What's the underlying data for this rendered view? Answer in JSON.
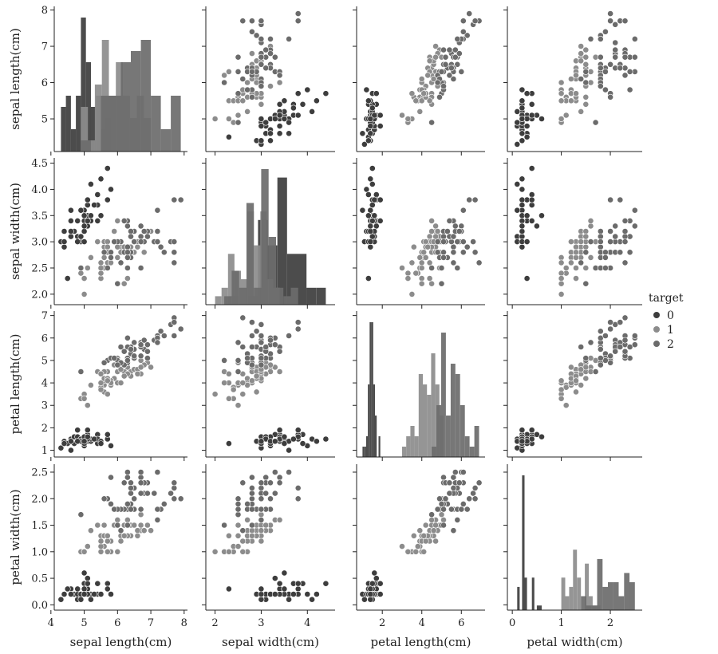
{
  "chart_data": {
    "type": "scatter",
    "title": "",
    "figure_kind": "pairplot",
    "grid": false,
    "legend": {
      "title": "target",
      "placement": "right",
      "entries": [
        {
          "label": "0",
          "color": "#3d3d3d"
        },
        {
          "label": "1",
          "color": "#8c8c8c"
        },
        {
          "label": "2",
          "color": "#6b6b6b"
        }
      ]
    },
    "variables": [
      {
        "key": "sepal_length",
        "label": "sepal length(cm)",
        "range": [
          4.1,
          8.1
        ],
        "ticks": [
          "4",
          "5",
          "6",
          "7",
          "8"
        ],
        "row_ticks": [
          "5",
          "6",
          "7",
          "8"
        ]
      },
      {
        "key": "sepal_width",
        "label": "sepal width(cm)",
        "range": [
          1.8,
          4.6
        ],
        "ticks": [
          "2",
          "3",
          "4"
        ],
        "row_ticks": [
          "2.0",
          "2.5",
          "3.0",
          "3.5",
          "4.0",
          "4.5"
        ]
      },
      {
        "key": "petal_length",
        "label": "petal length(cm)",
        "range": [
          0.7,
          7.2
        ],
        "ticks": [
          "2",
          "4",
          "6"
        ],
        "row_ticks": [
          "1",
          "2",
          "3",
          "4",
          "5",
          "6",
          "7"
        ]
      },
      {
        "key": "petal_width",
        "label": "petal width(cm)",
        "range": [
          -0.1,
          2.65
        ],
        "ticks": [
          "0",
          "1",
          "2"
        ],
        "row_ticks": [
          "0.0",
          "0.5",
          "1.0",
          "1.5",
          "2.0",
          "2.5"
        ]
      }
    ],
    "species": [
      {
        "target": "0",
        "color": "#3d3d3d",
        "sepal_length": [
          5.1,
          4.9,
          4.7,
          4.6,
          5.0,
          5.4,
          4.6,
          5.0,
          4.4,
          4.9,
          5.4,
          4.8,
          4.8,
          4.3,
          5.8,
          5.7,
          5.4,
          5.1,
          5.7,
          5.1,
          5.4,
          5.1,
          4.6,
          5.1,
          4.8,
          5.0,
          5.0,
          5.2,
          5.2,
          4.7,
          4.8,
          5.4,
          5.2,
          5.5,
          4.9,
          5.0,
          5.5,
          4.9,
          4.4,
          5.1,
          5.0,
          4.5,
          4.4,
          5.0,
          5.1,
          4.8,
          5.1,
          4.6,
          5.3,
          5.0
        ],
        "sepal_width": [
          3.5,
          3.0,
          3.2,
          3.1,
          3.6,
          3.9,
          3.4,
          3.4,
          2.9,
          3.1,
          3.7,
          3.4,
          3.0,
          3.0,
          4.0,
          4.4,
          3.9,
          3.5,
          3.8,
          3.8,
          3.4,
          3.7,
          3.6,
          3.3,
          3.4,
          3.0,
          3.4,
          3.5,
          3.4,
          3.2,
          3.1,
          3.4,
          4.1,
          4.2,
          3.1,
          3.2,
          3.5,
          3.6,
          3.0,
          3.4,
          3.5,
          2.3,
          3.2,
          3.5,
          3.8,
          3.0,
          3.8,
          3.2,
          3.7,
          3.3
        ],
        "petal_length": [
          1.4,
          1.4,
          1.3,
          1.5,
          1.4,
          1.7,
          1.4,
          1.5,
          1.4,
          1.5,
          1.5,
          1.6,
          1.4,
          1.1,
          1.2,
          1.5,
          1.3,
          1.4,
          1.7,
          1.5,
          1.7,
          1.5,
          1.0,
          1.7,
          1.9,
          1.6,
          1.6,
          1.5,
          1.4,
          1.6,
          1.6,
          1.5,
          1.5,
          1.4,
          1.5,
          1.2,
          1.3,
          1.4,
          1.3,
          1.5,
          1.3,
          1.3,
          1.3,
          1.6,
          1.9,
          1.4,
          1.6,
          1.4,
          1.5,
          1.4
        ],
        "petal_width": [
          0.2,
          0.2,
          0.2,
          0.2,
          0.2,
          0.4,
          0.3,
          0.2,
          0.2,
          0.1,
          0.2,
          0.2,
          0.1,
          0.1,
          0.2,
          0.4,
          0.4,
          0.3,
          0.3,
          0.3,
          0.2,
          0.4,
          0.2,
          0.5,
          0.2,
          0.2,
          0.4,
          0.2,
          0.2,
          0.2,
          0.2,
          0.4,
          0.1,
          0.2,
          0.2,
          0.2,
          0.2,
          0.1,
          0.2,
          0.2,
          0.3,
          0.3,
          0.2,
          0.6,
          0.4,
          0.3,
          0.2,
          0.2,
          0.2,
          0.2
        ]
      },
      {
        "target": "1",
        "color": "#8c8c8c",
        "sepal_length": [
          7.0,
          6.4,
          6.9,
          5.5,
          6.5,
          5.7,
          6.3,
          4.9,
          6.6,
          5.2,
          5.0,
          5.9,
          6.0,
          6.1,
          5.6,
          6.7,
          5.6,
          5.8,
          6.2,
          5.6,
          5.9,
          6.1,
          6.3,
          6.1,
          6.4,
          6.6,
          6.8,
          6.7,
          6.0,
          5.7,
          5.5,
          5.5,
          5.8,
          6.0,
          5.4,
          6.0,
          6.7,
          6.3,
          5.6,
          5.5,
          5.5,
          6.1,
          5.8,
          5.0,
          5.6,
          5.7,
          5.7,
          6.2,
          5.1,
          5.7
        ],
        "sepal_width": [
          3.2,
          3.2,
          3.1,
          2.3,
          2.8,
          2.8,
          3.3,
          2.4,
          2.9,
          2.7,
          2.0,
          3.0,
          2.2,
          2.9,
          2.9,
          3.1,
          3.0,
          2.7,
          2.2,
          2.5,
          3.2,
          2.8,
          2.5,
          2.8,
          2.9,
          3.0,
          2.8,
          3.0,
          2.9,
          2.6,
          2.4,
          2.4,
          2.7,
          2.7,
          3.0,
          3.4,
          3.1,
          2.3,
          3.0,
          2.5,
          2.6,
          3.0,
          2.6,
          2.3,
          2.7,
          3.0,
          2.9,
          2.9,
          2.5,
          2.8
        ],
        "petal_length": [
          4.7,
          4.5,
          4.9,
          4.0,
          4.6,
          4.5,
          4.7,
          3.3,
          4.6,
          3.9,
          3.5,
          4.2,
          4.0,
          4.7,
          3.6,
          4.4,
          4.5,
          4.1,
          4.5,
          3.9,
          4.8,
          4.0,
          4.9,
          4.7,
          4.3,
          4.4,
          4.8,
          5.0,
          4.5,
          3.5,
          3.8,
          3.7,
          3.9,
          5.1,
          4.5,
          4.5,
          4.7,
          4.4,
          4.1,
          4.0,
          4.4,
          4.6,
          4.0,
          3.3,
          4.2,
          4.2,
          4.2,
          4.3,
          3.0,
          4.1
        ],
        "petal_width": [
          1.4,
          1.5,
          1.5,
          1.3,
          1.5,
          1.3,
          1.6,
          1.0,
          1.3,
          1.4,
          1.0,
          1.5,
          1.0,
          1.4,
          1.3,
          1.4,
          1.5,
          1.0,
          1.5,
          1.1,
          1.8,
          1.3,
          1.5,
          1.2,
          1.3,
          1.4,
          1.4,
          1.7,
          1.5,
          1.0,
          1.1,
          1.0,
          1.2,
          1.6,
          1.5,
          1.6,
          1.5,
          1.3,
          1.3,
          1.3,
          1.2,
          1.4,
          1.2,
          1.0,
          1.3,
          1.2,
          1.3,
          1.3,
          1.1,
          1.3
        ]
      },
      {
        "target": "2",
        "color": "#6b6b6b",
        "sepal_length": [
          6.3,
          5.8,
          7.1,
          6.3,
          6.5,
          7.6,
          4.9,
          7.3,
          6.7,
          7.2,
          6.5,
          6.4,
          6.8,
          5.7,
          5.8,
          6.4,
          6.5,
          7.7,
          7.7,
          6.0,
          6.9,
          5.6,
          7.7,
          6.3,
          6.7,
          7.2,
          6.2,
          6.1,
          6.4,
          7.2,
          7.4,
          7.9,
          6.4,
          6.3,
          6.1,
          7.7,
          6.3,
          6.4,
          6.0,
          6.9,
          6.7,
          6.9,
          5.8,
          6.8,
          6.7,
          6.7,
          6.3,
          6.5,
          6.2,
          5.9
        ],
        "sepal_width": [
          3.3,
          2.7,
          3.0,
          2.9,
          3.0,
          3.0,
          2.5,
          2.9,
          2.5,
          3.6,
          3.2,
          2.7,
          3.0,
          2.5,
          2.8,
          3.2,
          3.0,
          3.8,
          2.6,
          2.2,
          3.2,
          2.8,
          2.8,
          2.7,
          3.3,
          3.2,
          2.8,
          3.0,
          2.8,
          3.0,
          2.8,
          3.8,
          2.8,
          2.8,
          2.6,
          3.0,
          3.4,
          3.1,
          3.0,
          3.1,
          3.1,
          3.1,
          2.7,
          3.2,
          3.3,
          3.0,
          2.5,
          3.0,
          3.4,
          3.0
        ],
        "petal_length": [
          6.0,
          5.1,
          5.9,
          5.6,
          5.8,
          6.6,
          4.5,
          6.3,
          5.8,
          6.1,
          5.1,
          5.3,
          5.5,
          5.0,
          5.1,
          5.3,
          5.5,
          6.7,
          6.9,
          5.0,
          5.7,
          4.9,
          6.7,
          4.9,
          5.7,
          6.0,
          4.8,
          4.9,
          5.6,
          5.8,
          6.1,
          6.4,
          5.6,
          5.1,
          5.6,
          6.1,
          5.6,
          5.5,
          4.8,
          5.4,
          5.6,
          5.1,
          5.1,
          5.9,
          5.7,
          5.2,
          5.0,
          5.2,
          5.4,
          5.1
        ],
        "petal_width": [
          2.5,
          1.9,
          2.1,
          1.8,
          2.2,
          2.1,
          1.7,
          1.8,
          1.8,
          2.5,
          2.0,
          1.9,
          2.1,
          2.0,
          2.4,
          2.3,
          1.8,
          2.2,
          2.3,
          1.5,
          2.3,
          2.0,
          2.0,
          1.8,
          2.1,
          1.8,
          1.8,
          1.8,
          2.1,
          1.6,
          1.9,
          2.0,
          2.2,
          1.5,
          1.4,
          2.3,
          2.4,
          1.8,
          1.8,
          2.1,
          2.4,
          2.3,
          1.9,
          2.3,
          2.5,
          2.3,
          1.9,
          2.0,
          2.3,
          1.8
        ]
      }
    ]
  }
}
